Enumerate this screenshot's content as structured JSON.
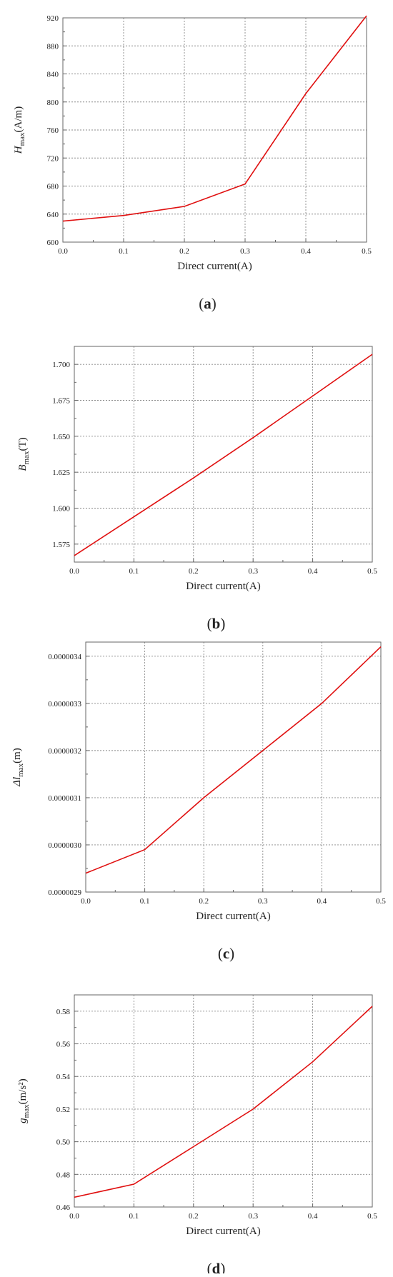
{
  "chart_data": [
    {
      "type": "line",
      "panel": "a",
      "xlabel": "Direct current(A)",
      "ylabel": {
        "base": "H",
        "sub": "max",
        "unit": "(A/m)"
      },
      "xlim": [
        0,
        0.5
      ],
      "ylim": [
        600,
        920
      ],
      "xticks": [
        0.0,
        0.1,
        0.2,
        0.3,
        0.4,
        0.5
      ],
      "yticks": [
        600,
        640,
        680,
        720,
        760,
        800,
        840,
        880,
        920
      ],
      "xtick_labels": [
        "0.0",
        "0.1",
        "0.2",
        "0.3",
        "0.4",
        "0.5"
      ],
      "ytick_labels": [
        "600",
        "640",
        "680",
        "720",
        "760",
        "800",
        "840",
        "880",
        "920"
      ],
      "grid": true,
      "series": [
        {
          "color": "#e01010",
          "x": [
            0,
            0.1,
            0.2,
            0.3,
            0.4,
            0.5
          ],
          "y": [
            630,
            638,
            651,
            683,
            812,
            923
          ]
        }
      ]
    },
    {
      "type": "line",
      "panel": "b",
      "xlabel": "Direct current(A)",
      "ylabel": {
        "base": "B",
        "sub": "max",
        "unit": "(T)"
      },
      "xlim": [
        0,
        0.5
      ],
      "ylim": [
        1.5625,
        1.7125
      ],
      "xticks": [
        0.0,
        0.1,
        0.2,
        0.3,
        0.4,
        0.5
      ],
      "yticks": [
        1.575,
        1.6,
        1.625,
        1.65,
        1.675,
        1.7
      ],
      "xtick_labels": [
        "0.0",
        "0.1",
        "0.2",
        "0.3",
        "0.4",
        "0.5"
      ],
      "ytick_labels": [
        "1.575",
        "1.600",
        "1.625",
        "1.650",
        "1.675",
        "1.700"
      ],
      "grid": true,
      "series": [
        {
          "color": "#e01010",
          "x": [
            0,
            0.1,
            0.2,
            0.3,
            0.4,
            0.5
          ],
          "y": [
            1.567,
            1.594,
            1.621,
            1.649,
            1.678,
            1.707
          ]
        }
      ]
    },
    {
      "type": "line",
      "panel": "c",
      "xlabel": "Direct current(A)",
      "ylabel": {
        "base": "Δl",
        "sub": "max",
        "unit": "(m)"
      },
      "xlim": [
        0,
        0.5
      ],
      "ylim": [
        2.9e-06,
        3.43e-06
      ],
      "xticks": [
        0.0,
        0.1,
        0.2,
        0.3,
        0.4,
        0.5
      ],
      "yticks": [
        2.9e-06,
        3e-06,
        3.1e-06,
        3.2e-06,
        3.3e-06,
        3.4e-06
      ],
      "xtick_labels": [
        "0.0",
        "0.1",
        "0.2",
        "0.3",
        "0.4",
        "0.5"
      ],
      "ytick_labels": [
        "0.0000029",
        "0.0000030",
        "0.0000031",
        "0.0000032",
        "0.0000033",
        "0.0000034"
      ],
      "grid": true,
      "series": [
        {
          "color": "#e01010",
          "x": [
            0,
            0.1,
            0.2,
            0.3,
            0.4,
            0.5
          ],
          "y": [
            2.94e-06,
            2.99e-06,
            3.1e-06,
            3.2e-06,
            3.3e-06,
            3.42e-06
          ]
        }
      ]
    },
    {
      "type": "line",
      "panel": "d",
      "xlabel": "Direct current(A)",
      "ylabel": {
        "base": "g",
        "sub": "max",
        "unit": "(m/s²)"
      },
      "xlim": [
        0,
        0.5
      ],
      "ylim": [
        0.46,
        0.59
      ],
      "xticks": [
        0.0,
        0.1,
        0.2,
        0.3,
        0.4,
        0.5
      ],
      "yticks": [
        0.46,
        0.48,
        0.5,
        0.52,
        0.54,
        0.56,
        0.58
      ],
      "xtick_labels": [
        "0.0",
        "0.1",
        "0.2",
        "0.3",
        "0.4",
        "0.5"
      ],
      "ytick_labels": [
        "0.46",
        "0.48",
        "0.50",
        "0.52",
        "0.54",
        "0.56",
        "0.58"
      ],
      "grid": true,
      "series": [
        {
          "color": "#e01010",
          "x": [
            0,
            0.1,
            0.2,
            0.3,
            0.4,
            0.5
          ],
          "y": [
            0.466,
            0.474,
            0.497,
            0.52,
            0.549,
            0.583
          ]
        }
      ]
    }
  ],
  "captions": [
    "a",
    "b",
    "c",
    "d"
  ]
}
